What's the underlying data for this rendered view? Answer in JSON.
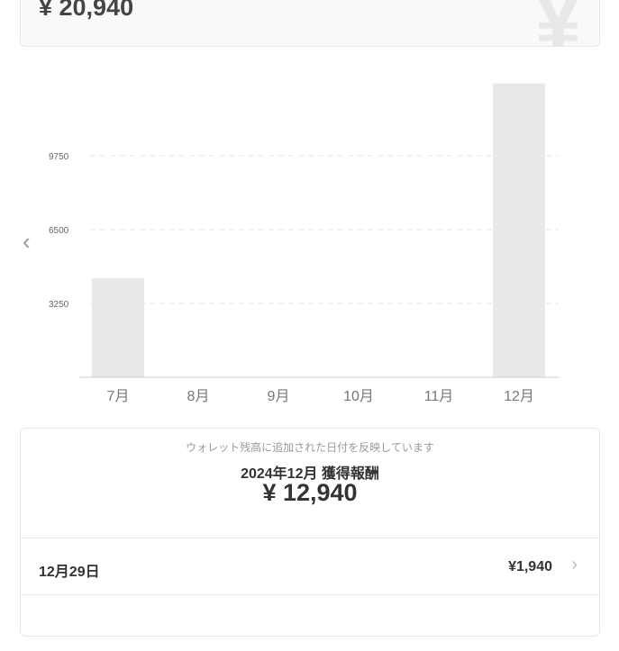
{
  "summary": {
    "total": "¥ 20,940",
    "icon": "yen-icon"
  },
  "chart_data": {
    "type": "bar",
    "categories": [
      "7月",
      "8月",
      "9月",
      "10月",
      "11月",
      "12月"
    ],
    "values": [
      4360,
      0,
      0,
      0,
      0,
      12940
    ],
    "yticks": [
      3250,
      6500,
      9750
    ],
    "ylim": [
      0,
      13000
    ],
    "grid": true,
    "bar_color": "#e8e8e8"
  },
  "detail": {
    "note": "ウォレット残高に追加された日付を反映しています",
    "title": "2024年12月 獲得報酬",
    "amount": "¥ 12,940",
    "rows": [
      {
        "date": "12月29日",
        "amount": "¥1,940"
      }
    ]
  }
}
